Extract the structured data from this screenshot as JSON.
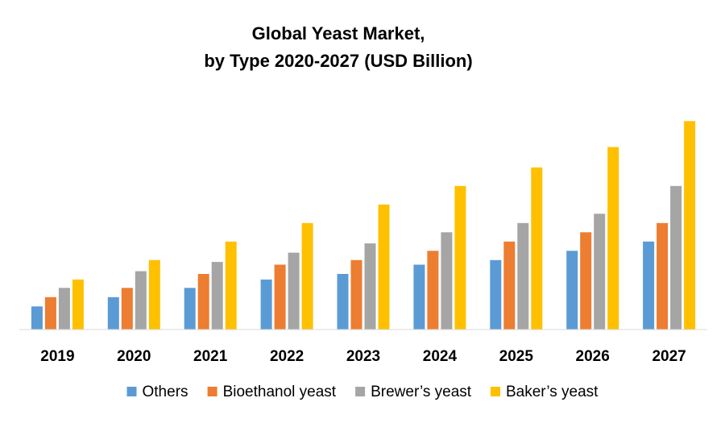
{
  "chart_data": {
    "type": "bar",
    "title_lines": [
      "Global Yeast Market,",
      "by Type 2020-2027 (USD Billion)"
    ],
    "categories": [
      "2019",
      "2020",
      "2021",
      "2022",
      "2023",
      "2024",
      "2025",
      "2026",
      "2027"
    ],
    "series": [
      {
        "name": "Others",
        "color": "#5B9BD5",
        "values": [
          2.5,
          3.5,
          4.5,
          5.4,
          6.0,
          7.0,
          7.5,
          8.5,
          9.5
        ]
      },
      {
        "name": "Bioethanol yeast",
        "color": "#ED7D31",
        "values": [
          3.5,
          4.5,
          6.0,
          7.0,
          7.5,
          8.5,
          9.5,
          10.5,
          11.5
        ]
      },
      {
        "name": "Brewer’s yeast",
        "color": "#A5A5A5",
        "values": [
          4.5,
          6.3,
          7.3,
          8.3,
          9.3,
          10.5,
          11.5,
          12.5,
          15.5
        ]
      },
      {
        "name": "Baker’s yeast",
        "color": "#FFC000",
        "values": [
          5.4,
          7.5,
          9.5,
          11.5,
          13.5,
          15.5,
          17.5,
          19.7,
          22.5
        ]
      }
    ],
    "ylim": [
      0,
      24
    ],
    "y_axis_visible": false,
    "grid": false,
    "legend_position": "bottom",
    "axis_line_color": "#D9D9D9"
  }
}
